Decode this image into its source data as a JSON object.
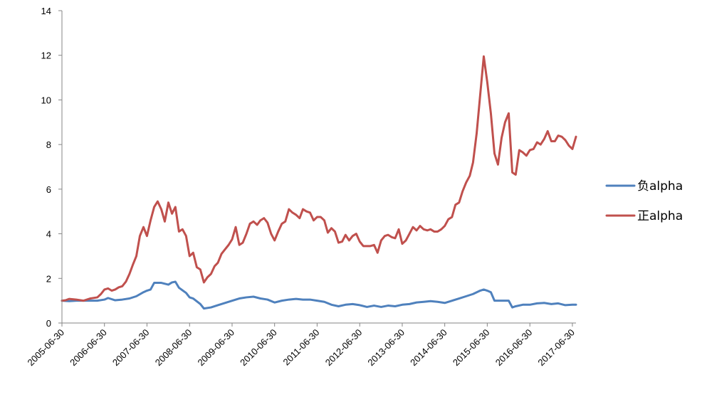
{
  "chart_data": {
    "type": "line",
    "title": "",
    "xlabel": "",
    "ylabel": "",
    "ylim": [
      0,
      14
    ],
    "yticks": [
      0,
      2,
      4,
      6,
      8,
      10,
      12,
      14
    ],
    "x_tick_labels": [
      "2005-06-30",
      "2006-06-30",
      "2007-06-30",
      "2008-06-30",
      "2009-06-30",
      "2010-06-30",
      "2011-06-30",
      "2012-06-30",
      "2013-06-30",
      "2014-06-30",
      "2015-06-30",
      "2016-06-30",
      "2017-06-30"
    ],
    "x_range": [
      "2005-06-30",
      "2017-07-31"
    ],
    "grid": false,
    "legend_position": "right",
    "series": [
      {
        "name": "负alpha",
        "color": "#4f81bd",
        "points": [
          [
            "2005-06-30",
            1.0
          ],
          [
            "2005-08-31",
            0.98
          ],
          [
            "2005-10-31",
            1.0
          ],
          [
            "2005-12-31",
            1.0
          ],
          [
            "2006-02-28",
            1.0
          ],
          [
            "2006-04-30",
            1.0
          ],
          [
            "2006-06-30",
            1.05
          ],
          [
            "2006-07-31",
            1.12
          ],
          [
            "2006-09-30",
            1.02
          ],
          [
            "2006-11-30",
            1.05
          ],
          [
            "2007-01-31",
            1.1
          ],
          [
            "2007-03-31",
            1.2
          ],
          [
            "2007-05-31",
            1.38
          ],
          [
            "2007-06-30",
            1.45
          ],
          [
            "2007-07-31",
            1.5
          ],
          [
            "2007-08-31",
            1.8
          ],
          [
            "2007-10-31",
            1.8
          ],
          [
            "2007-12-31",
            1.72
          ],
          [
            "2008-01-31",
            1.82
          ],
          [
            "2008-02-29",
            1.85
          ],
          [
            "2008-03-31",
            1.58
          ],
          [
            "2008-05-31",
            1.35
          ],
          [
            "2008-06-30",
            1.15
          ],
          [
            "2008-07-31",
            1.1
          ],
          [
            "2008-09-30",
            0.85
          ],
          [
            "2008-10-31",
            0.65
          ],
          [
            "2008-12-31",
            0.7
          ],
          [
            "2009-02-28",
            0.8
          ],
          [
            "2009-04-30",
            0.9
          ],
          [
            "2009-06-30",
            1.0
          ],
          [
            "2009-08-31",
            1.1
          ],
          [
            "2009-10-31",
            1.15
          ],
          [
            "2009-12-31",
            1.18
          ],
          [
            "2010-02-28",
            1.1
          ],
          [
            "2010-04-30",
            1.05
          ],
          [
            "2010-06-30",
            0.92
          ],
          [
            "2010-08-31",
            1.0
          ],
          [
            "2010-10-31",
            1.05
          ],
          [
            "2010-12-31",
            1.08
          ],
          [
            "2011-02-28",
            1.05
          ],
          [
            "2011-04-30",
            1.05
          ],
          [
            "2011-06-30",
            1.0
          ],
          [
            "2011-08-31",
            0.95
          ],
          [
            "2011-10-31",
            0.82
          ],
          [
            "2011-12-31",
            0.75
          ],
          [
            "2012-02-29",
            0.82
          ],
          [
            "2012-04-30",
            0.85
          ],
          [
            "2012-06-30",
            0.8
          ],
          [
            "2012-08-31",
            0.72
          ],
          [
            "2012-10-31",
            0.78
          ],
          [
            "2012-12-31",
            0.72
          ],
          [
            "2013-02-28",
            0.78
          ],
          [
            "2013-04-30",
            0.75
          ],
          [
            "2013-06-30",
            0.82
          ],
          [
            "2013-08-31",
            0.85
          ],
          [
            "2013-10-31",
            0.92
          ],
          [
            "2013-12-31",
            0.95
          ],
          [
            "2014-02-28",
            0.98
          ],
          [
            "2014-04-30",
            0.95
          ],
          [
            "2014-06-30",
            0.9
          ],
          [
            "2014-08-31",
            1.0
          ],
          [
            "2014-10-31",
            1.1
          ],
          [
            "2014-12-31",
            1.2
          ],
          [
            "2015-02-28",
            1.3
          ],
          [
            "2015-04-30",
            1.45
          ],
          [
            "2015-05-31",
            1.5
          ],
          [
            "2015-06-30",
            1.45
          ],
          [
            "2015-07-31",
            1.38
          ],
          [
            "2015-08-31",
            1.0
          ],
          [
            "2015-10-31",
            1.0
          ],
          [
            "2015-12-31",
            1.0
          ],
          [
            "2016-01-31",
            0.7
          ],
          [
            "2016-02-29",
            0.75
          ],
          [
            "2016-04-30",
            0.82
          ],
          [
            "2016-06-30",
            0.82
          ],
          [
            "2016-08-31",
            0.88
          ],
          [
            "2016-10-31",
            0.9
          ],
          [
            "2016-12-31",
            0.85
          ],
          [
            "2017-02-28",
            0.88
          ],
          [
            "2017-04-30",
            0.8
          ],
          [
            "2017-06-30",
            0.82
          ],
          [
            "2017-07-31",
            0.82
          ]
        ]
      },
      {
        "name": "正alpha",
        "color": "#c0504d",
        "points": [
          [
            "2005-06-30",
            1.0
          ],
          [
            "2005-07-31",
            1.02
          ],
          [
            "2005-08-31",
            1.08
          ],
          [
            "2005-10-31",
            1.05
          ],
          [
            "2005-12-31",
            1.0
          ],
          [
            "2006-02-28",
            1.1
          ],
          [
            "2006-04-30",
            1.15
          ],
          [
            "2006-05-31",
            1.3
          ],
          [
            "2006-06-30",
            1.5
          ],
          [
            "2006-07-31",
            1.55
          ],
          [
            "2006-08-31",
            1.45
          ],
          [
            "2006-09-30",
            1.5
          ],
          [
            "2006-10-31",
            1.6
          ],
          [
            "2006-11-30",
            1.65
          ],
          [
            "2006-12-31",
            1.85
          ],
          [
            "2007-01-31",
            2.2
          ],
          [
            "2007-02-28",
            2.6
          ],
          [
            "2007-03-31",
            3.0
          ],
          [
            "2007-04-30",
            3.9
          ],
          [
            "2007-05-31",
            4.3
          ],
          [
            "2007-06-30",
            3.9
          ],
          [
            "2007-07-31",
            4.6
          ],
          [
            "2007-08-31",
            5.2
          ],
          [
            "2007-09-30",
            5.45
          ],
          [
            "2007-10-31",
            5.1
          ],
          [
            "2007-11-30",
            4.55
          ],
          [
            "2007-12-31",
            5.4
          ],
          [
            "2008-01-31",
            4.9
          ],
          [
            "2008-02-29",
            5.2
          ],
          [
            "2008-03-31",
            4.1
          ],
          [
            "2008-04-30",
            4.2
          ],
          [
            "2008-05-31",
            3.9
          ],
          [
            "2008-06-30",
            3.0
          ],
          [
            "2008-07-31",
            3.15
          ],
          [
            "2008-08-31",
            2.5
          ],
          [
            "2008-09-30",
            2.4
          ],
          [
            "2008-10-31",
            1.82
          ],
          [
            "2008-11-30",
            2.05
          ],
          [
            "2008-12-31",
            2.2
          ],
          [
            "2009-01-31",
            2.55
          ],
          [
            "2009-02-28",
            2.7
          ],
          [
            "2009-03-31",
            3.1
          ],
          [
            "2009-04-30",
            3.3
          ],
          [
            "2009-05-31",
            3.5
          ],
          [
            "2009-06-30",
            3.75
          ],
          [
            "2009-07-31",
            4.3
          ],
          [
            "2009-08-31",
            3.5
          ],
          [
            "2009-09-30",
            3.6
          ],
          [
            "2009-10-31",
            4.0
          ],
          [
            "2009-11-30",
            4.45
          ],
          [
            "2009-12-31",
            4.55
          ],
          [
            "2010-01-31",
            4.4
          ],
          [
            "2010-02-28",
            4.6
          ],
          [
            "2010-03-31",
            4.7
          ],
          [
            "2010-04-30",
            4.5
          ],
          [
            "2010-05-31",
            4.0
          ],
          [
            "2010-06-30",
            3.7
          ],
          [
            "2010-07-31",
            4.1
          ],
          [
            "2010-08-31",
            4.45
          ],
          [
            "2010-09-30",
            4.55
          ],
          [
            "2010-10-31",
            5.1
          ],
          [
            "2010-11-30",
            4.95
          ],
          [
            "2010-12-31",
            4.85
          ],
          [
            "2011-01-31",
            4.7
          ],
          [
            "2011-02-28",
            5.1
          ],
          [
            "2011-03-31",
            5.0
          ],
          [
            "2011-04-30",
            4.95
          ],
          [
            "2011-05-31",
            4.6
          ],
          [
            "2011-06-30",
            4.75
          ],
          [
            "2011-07-31",
            4.75
          ],
          [
            "2011-08-31",
            4.6
          ],
          [
            "2011-09-30",
            4.05
          ],
          [
            "2011-10-31",
            4.25
          ],
          [
            "2011-11-30",
            4.1
          ],
          [
            "2011-12-31",
            3.6
          ],
          [
            "2012-01-31",
            3.65
          ],
          [
            "2012-02-29",
            3.95
          ],
          [
            "2012-03-31",
            3.7
          ],
          [
            "2012-04-30",
            3.9
          ],
          [
            "2012-05-31",
            4.0
          ],
          [
            "2012-06-30",
            3.65
          ],
          [
            "2012-07-31",
            3.45
          ],
          [
            "2012-08-31",
            3.45
          ],
          [
            "2012-09-30",
            3.45
          ],
          [
            "2012-10-31",
            3.5
          ],
          [
            "2012-11-30",
            3.15
          ],
          [
            "2012-12-31",
            3.7
          ],
          [
            "2013-01-31",
            3.9
          ],
          [
            "2013-02-28",
            3.95
          ],
          [
            "2013-03-31",
            3.85
          ],
          [
            "2013-04-30",
            3.8
          ],
          [
            "2013-05-31",
            4.2
          ],
          [
            "2013-06-30",
            3.55
          ],
          [
            "2013-07-31",
            3.7
          ],
          [
            "2013-08-31",
            4.0
          ],
          [
            "2013-09-30",
            4.3
          ],
          [
            "2013-10-31",
            4.15
          ],
          [
            "2013-11-30",
            4.35
          ],
          [
            "2013-12-31",
            4.2
          ],
          [
            "2014-01-31",
            4.15
          ],
          [
            "2014-02-28",
            4.2
          ],
          [
            "2014-03-31",
            4.1
          ],
          [
            "2014-04-30",
            4.1
          ],
          [
            "2014-05-31",
            4.2
          ],
          [
            "2014-06-30",
            4.35
          ],
          [
            "2014-07-31",
            4.65
          ],
          [
            "2014-08-31",
            4.75
          ],
          [
            "2014-09-30",
            5.3
          ],
          [
            "2014-10-31",
            5.4
          ],
          [
            "2014-11-30",
            5.9
          ],
          [
            "2014-12-31",
            6.3
          ],
          [
            "2015-01-31",
            6.6
          ],
          [
            "2015-02-28",
            7.2
          ],
          [
            "2015-03-31",
            8.5
          ],
          [
            "2015-04-30",
            10.2
          ],
          [
            "2015-05-31",
            11.95
          ],
          [
            "2015-06-30",
            10.8
          ],
          [
            "2015-07-31",
            9.4
          ],
          [
            "2015-08-31",
            7.6
          ],
          [
            "2015-09-30",
            7.1
          ],
          [
            "2015-10-31",
            8.3
          ],
          [
            "2015-11-30",
            9.0
          ],
          [
            "2015-12-31",
            9.4
          ],
          [
            "2016-01-31",
            6.75
          ],
          [
            "2016-02-29",
            6.65
          ],
          [
            "2016-03-31",
            7.75
          ],
          [
            "2016-04-30",
            7.65
          ],
          [
            "2016-05-31",
            7.5
          ],
          [
            "2016-06-30",
            7.75
          ],
          [
            "2016-07-31",
            7.8
          ],
          [
            "2016-08-31",
            8.1
          ],
          [
            "2016-09-30",
            8.0
          ],
          [
            "2016-10-31",
            8.25
          ],
          [
            "2016-11-30",
            8.6
          ],
          [
            "2016-12-31",
            8.15
          ],
          [
            "2017-01-31",
            8.15
          ],
          [
            "2017-02-28",
            8.4
          ],
          [
            "2017-03-31",
            8.35
          ],
          [
            "2017-04-30",
            8.2
          ],
          [
            "2017-05-31",
            7.95
          ],
          [
            "2017-06-30",
            7.8
          ],
          [
            "2017-07-31",
            8.35
          ]
        ]
      }
    ]
  }
}
